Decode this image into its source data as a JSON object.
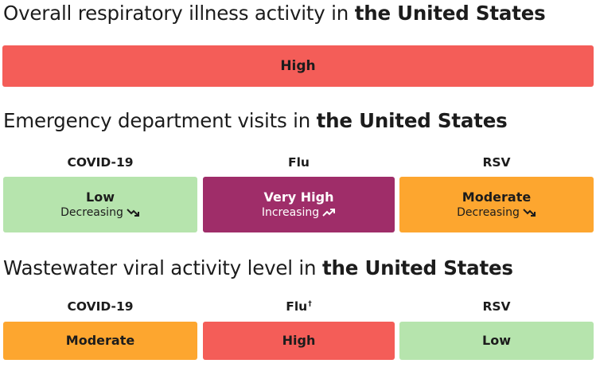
{
  "sections": {
    "overall": {
      "title_prefix": "Overall respiratory illness activity in ",
      "title_place": "the United States",
      "level": "High",
      "color": "#f45d58"
    },
    "ed_visits": {
      "title_prefix": "Emergency department visits in ",
      "title_place": "the United States",
      "columns": [
        {
          "label": "COVID-19",
          "level": "Low",
          "trend": "Decreasing",
          "trend_icon": "arrow-down-right-icon",
          "color": "#b6e4ad"
        },
        {
          "label": "Flu",
          "level": "Very High",
          "trend": "Increasing",
          "trend_icon": "arrow-up-right-icon",
          "color": "#9f2d69"
        },
        {
          "label": "RSV",
          "level": "Moderate",
          "trend": "Decreasing",
          "trend_icon": "arrow-down-right-icon",
          "color": "#fda62f"
        }
      ]
    },
    "wastewater": {
      "title_prefix": "Wastewater viral activity level in ",
      "title_place": "the United States",
      "columns": [
        {
          "label": "COVID-19",
          "mark": "",
          "level": "Moderate",
          "color": "#fda62f"
        },
        {
          "label": "Flu",
          "mark": "†",
          "level": "High",
          "color": "#f45d58"
        },
        {
          "label": "RSV",
          "mark": "",
          "level": "Low",
          "color": "#b6e4ad"
        }
      ]
    }
  }
}
